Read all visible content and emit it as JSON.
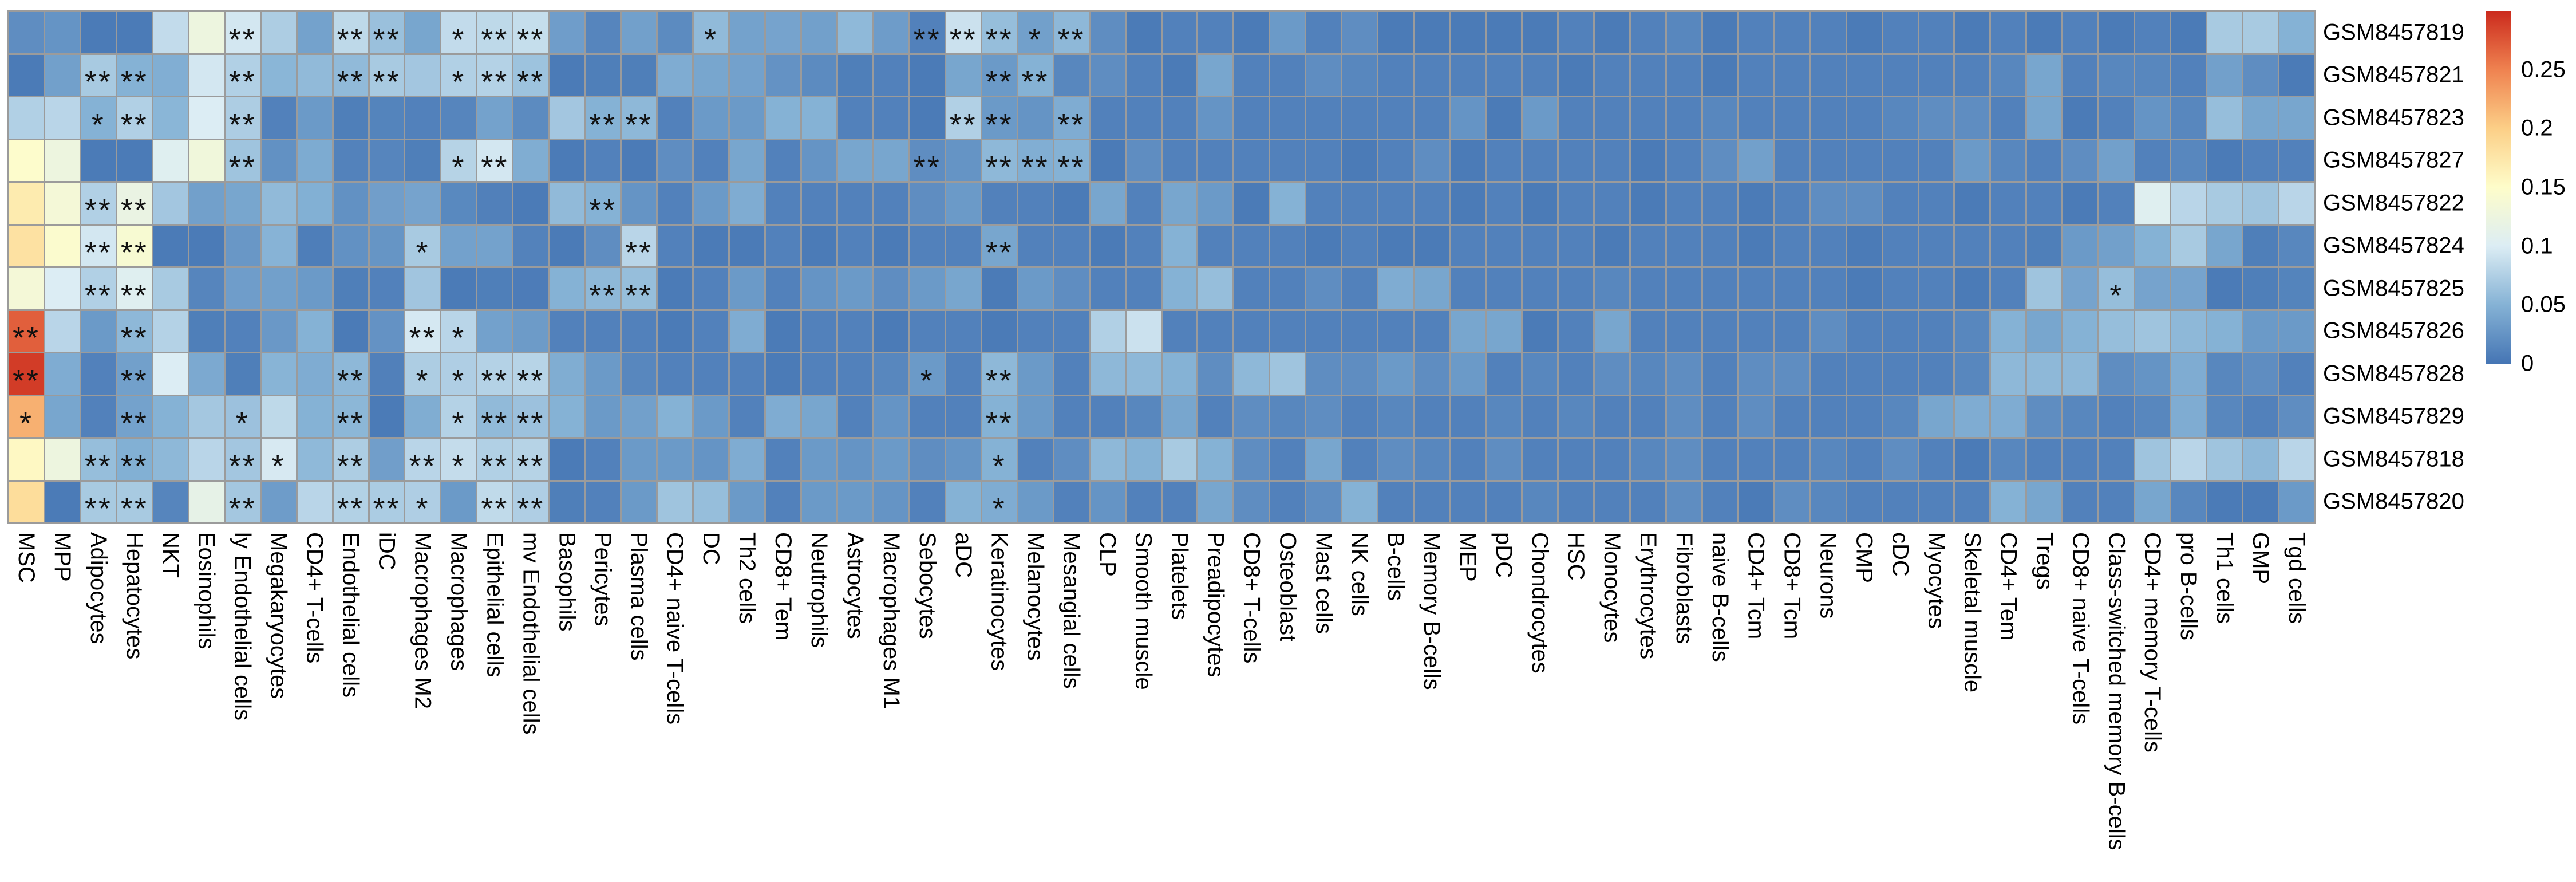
{
  "chart_data": {
    "type": "heatmap",
    "title": "",
    "legend_position": "right",
    "grid_color": "#9b9b9b",
    "background": "#ffffff",
    "rows": [
      "GSM8457819",
      "GSM8457821",
      "GSM8457823",
      "GSM8457827",
      "GSM8457822",
      "GSM8457824",
      "GSM8457825",
      "GSM8457826",
      "GSM8457828",
      "GSM8457829",
      "GSM8457818",
      "GSM8457820"
    ],
    "columns": [
      "MSC",
      "MPP",
      "Adipocytes",
      "Hepatocytes",
      "NKT",
      "Eosinophils",
      "ly Endothelial cells",
      "Megakaryocytes",
      "CD4+ T-cells",
      "Endothelial cells",
      "iDC",
      "Macrophages M2",
      "Macrophages",
      "Epithelial cells",
      "mv Endothelial cells",
      "Basophils",
      "Pericytes",
      "Plasma cells",
      "CD4+ naive T-cells",
      "DC",
      "Th2 cells",
      "CD8+ Tem",
      "Neutrophils",
      "Astrocytes",
      "Macrophages M1",
      "Sebocytes",
      "aDC",
      "Keratinocytes",
      "Melanocytes",
      "Mesangial cells",
      "CLP",
      "Smooth muscle",
      "Platelets",
      "Preadipocytes",
      "CD8+ T-cells",
      "Osteoblast",
      "Mast cells",
      "NK cells",
      "B-cells",
      "Memory B-cells",
      "MEP",
      "pDC",
      "Chondrocytes",
      "HSC",
      "Monocytes",
      "Erythrocytes",
      "Fibroblasts",
      "naive B-cells",
      "CD4+ Tcm",
      "CD8+ Tcm",
      "Neurons",
      "CMP",
      "cDC",
      "Myocytes",
      "Skeletal muscle",
      "CD4+ Tem",
      "Tregs",
      "CD8+ naive T-cells",
      "Class-switched memory B-cells",
      "CD4+ memory T-cells",
      "pro B-cells",
      "Th1 cells",
      "GMP",
      "Tgd cells"
    ],
    "values": [
      [
        0.02,
        0.025,
        0.005,
        0.005,
        0.085,
        0.125,
        0.095,
        0.073,
        0.037,
        0.083,
        0.062,
        0.04,
        0.085,
        0.083,
        0.087,
        0.033,
        0.013,
        0.035,
        0.018,
        0.057,
        0.037,
        0.038,
        0.035,
        0.056,
        0.032,
        0.01,
        0.09,
        0.06,
        0.035,
        0.055,
        0.02,
        0.005,
        0.01,
        0.01,
        0.005,
        0.03,
        0.01,
        0.02,
        0.005,
        0.005,
        0.005,
        0.005,
        0.005,
        0.01,
        0.005,
        0.01,
        0.015,
        0.005,
        0.01,
        0.01,
        0.01,
        0.005,
        0.01,
        0.01,
        0.005,
        0.01,
        0.005,
        0.01,
        0.005,
        0.01,
        0.005,
        0.07,
        0.07,
        0.05
      ],
      [
        0.005,
        0.035,
        0.07,
        0.05,
        0.047,
        0.095,
        0.075,
        0.053,
        0.057,
        0.057,
        0.07,
        0.067,
        0.075,
        0.077,
        0.064,
        0.005,
        0.008,
        0.008,
        0.045,
        0.04,
        0.036,
        0.024,
        0.018,
        0.008,
        0.01,
        0.005,
        0.04,
        0.03,
        0.05,
        0.015,
        0.02,
        0.01,
        0.005,
        0.04,
        0.01,
        0.01,
        0.02,
        0.015,
        0.01,
        0.01,
        0.01,
        0.01,
        0.01,
        0.005,
        0.01,
        0.01,
        0.01,
        0.005,
        0.01,
        0.01,
        0.01,
        0.01,
        0.01,
        0.01,
        0.01,
        0.015,
        0.04,
        0.01,
        0.015,
        0.015,
        0.01,
        0.035,
        0.02,
        0.005
      ],
      [
        0.075,
        0.08,
        0.05,
        0.075,
        0.053,
        0.1,
        0.073,
        0.01,
        0.03,
        0.008,
        0.012,
        0.01,
        0.013,
        0.037,
        0.018,
        0.067,
        0.05,
        0.055,
        0.01,
        0.03,
        0.03,
        0.05,
        0.05,
        0.01,
        0.01,
        0.005,
        0.075,
        0.03,
        0.025,
        0.045,
        0.01,
        0.01,
        0.01,
        0.025,
        0.01,
        0.01,
        0.01,
        0.01,
        0.01,
        0.01,
        0.025,
        0.005,
        0.03,
        0.01,
        0.01,
        0.01,
        0.01,
        0.015,
        0.01,
        0.01,
        0.01,
        0.01,
        0.015,
        0.02,
        0.02,
        0.01,
        0.04,
        0.005,
        0.01,
        0.025,
        0.015,
        0.06,
        0.04,
        0.04
      ],
      [
        0.148,
        0.125,
        0.005,
        0.005,
        0.105,
        0.13,
        0.065,
        0.023,
        0.044,
        0.011,
        0.013,
        0.008,
        0.078,
        0.095,
        0.046,
        0.005,
        0.01,
        0.005,
        0.02,
        0.01,
        0.04,
        0.01,
        0.025,
        0.04,
        0.04,
        0.02,
        0.025,
        0.055,
        0.047,
        0.05,
        0.005,
        0.02,
        0.01,
        0.01,
        0.01,
        0.01,
        0.01,
        0.005,
        0.01,
        0.02,
        0.005,
        0.01,
        0.01,
        0.01,
        0.01,
        0.005,
        0.01,
        0.02,
        0.035,
        0.01,
        0.01,
        0.01,
        0.01,
        0.01,
        0.03,
        0.015,
        0.01,
        0.02,
        0.035,
        0.01,
        0.015,
        0.005,
        0.01,
        0.01
      ],
      [
        0.17,
        0.135,
        0.075,
        0.12,
        0.067,
        0.035,
        0.04,
        0.057,
        0.048,
        0.023,
        0.034,
        0.038,
        0.016,
        0.009,
        0.005,
        0.057,
        0.05,
        0.025,
        0.01,
        0.03,
        0.045,
        0.01,
        0.01,
        0.01,
        0.01,
        0.02,
        0.03,
        0.01,
        0.01,
        0.005,
        0.04,
        0.01,
        0.04,
        0.03,
        0.005,
        0.05,
        0.01,
        0.01,
        0.01,
        0.01,
        0.005,
        0.01,
        0.005,
        0.01,
        0.01,
        0.005,
        0.01,
        0.01,
        0.005,
        0.01,
        0.02,
        0.02,
        0.01,
        0.01,
        0.005,
        0.01,
        0.01,
        0.005,
        0.01,
        0.105,
        0.08,
        0.07,
        0.065,
        0.08
      ],
      [
        0.18,
        0.145,
        0.095,
        0.14,
        0.005,
        0.005,
        0.028,
        0.051,
        0.007,
        0.023,
        0.026,
        0.07,
        0.036,
        0.037,
        0.011,
        0.005,
        0.02,
        0.08,
        0.01,
        0.005,
        0.005,
        0.01,
        0.005,
        0.01,
        0.005,
        0.01,
        0.01,
        0.04,
        0.01,
        0.01,
        0.005,
        0.01,
        0.05,
        0.01,
        0.01,
        0.01,
        0.005,
        0.01,
        0.005,
        0.005,
        0.01,
        0.01,
        0.01,
        0.01,
        0.005,
        0.01,
        0.01,
        0.01,
        0.005,
        0.01,
        0.01,
        0.005,
        0.01,
        0.01,
        0.01,
        0.01,
        0.008,
        0.03,
        0.035,
        0.05,
        0.07,
        0.04,
        0.008,
        0.015
      ],
      [
        0.135,
        0.1,
        0.075,
        0.105,
        0.07,
        0.013,
        0.033,
        0.035,
        0.03,
        0.008,
        0.01,
        0.066,
        0.005,
        0.008,
        0.006,
        0.05,
        0.055,
        0.06,
        0.005,
        0.01,
        0.03,
        0.01,
        0.025,
        0.03,
        0.02,
        0.03,
        0.04,
        0.005,
        0.03,
        0.02,
        0.01,
        0.01,
        0.05,
        0.06,
        0.01,
        0.01,
        0.02,
        0.01,
        0.045,
        0.04,
        0.01,
        0.01,
        0.01,
        0.01,
        0.015,
        0.01,
        0.01,
        0.01,
        0.01,
        0.01,
        0.01,
        0.005,
        0.01,
        0.01,
        0.005,
        0.01,
        0.065,
        0.038,
        0.06,
        0.038,
        0.038,
        0.005,
        0.008,
        0.012
      ],
      [
        0.27,
        0.08,
        0.03,
        0.055,
        0.077,
        0.008,
        0.01,
        0.029,
        0.05,
        0.005,
        0.024,
        0.096,
        0.08,
        0.036,
        0.031,
        0.01,
        0.01,
        0.01,
        0.005,
        0.01,
        0.045,
        0.005,
        0.01,
        0.01,
        0.005,
        0.01,
        0.01,
        0.005,
        0.01,
        0.01,
        0.075,
        0.09,
        0.01,
        0.01,
        0.01,
        0.01,
        0.01,
        0.01,
        0.01,
        0.01,
        0.04,
        0.04,
        0.005,
        0.01,
        0.04,
        0.01,
        0.01,
        0.01,
        0.01,
        0.01,
        0.02,
        0.01,
        0.01,
        0.01,
        0.015,
        0.05,
        0.04,
        0.05,
        0.06,
        0.065,
        0.055,
        0.05,
        0.03,
        0.03
      ],
      [
        0.29,
        0.045,
        0.01,
        0.035,
        0.1,
        0.043,
        0.008,
        0.052,
        0.045,
        0.055,
        0.009,
        0.073,
        0.074,
        0.077,
        0.079,
        0.046,
        0.03,
        0.015,
        0.01,
        0.01,
        0.01,
        0.005,
        0.01,
        0.01,
        0.015,
        0.03,
        0.01,
        0.055,
        0.03,
        0.01,
        0.055,
        0.055,
        0.05,
        0.02,
        0.055,
        0.065,
        0.02,
        0.02,
        0.03,
        0.02,
        0.03,
        0.01,
        0.015,
        0.01,
        0.02,
        0.015,
        0.02,
        0.01,
        0.02,
        0.02,
        0.01,
        0.01,
        0.01,
        0.01,
        0.015,
        0.055,
        0.055,
        0.055,
        0.02,
        0.025,
        0.045,
        0.015,
        0.02,
        0.01
      ],
      [
        0.22,
        0.04,
        0.01,
        0.037,
        0.05,
        0.068,
        0.063,
        0.083,
        0.05,
        0.054,
        0.005,
        0.046,
        0.077,
        0.057,
        0.063,
        0.05,
        0.03,
        0.035,
        0.05,
        0.03,
        0.01,
        0.045,
        0.04,
        0.01,
        0.025,
        0.01,
        0.01,
        0.05,
        0.03,
        0.01,
        0.01,
        0.015,
        0.04,
        0.01,
        0.02,
        0.015,
        0.02,
        0.01,
        0.015,
        0.01,
        0.01,
        0.015,
        0.01,
        0.015,
        0.01,
        0.01,
        0.02,
        0.01,
        0.02,
        0.01,
        0.01,
        0.01,
        0.015,
        0.04,
        0.045,
        0.045,
        0.02,
        0.015,
        0.01,
        0.015,
        0.045,
        0.015,
        0.01,
        0.02
      ],
      [
        0.155,
        0.125,
        0.06,
        0.048,
        0.055,
        0.08,
        0.067,
        0.097,
        0.056,
        0.073,
        0.034,
        0.08,
        0.086,
        0.075,
        0.078,
        0.005,
        0.01,
        0.03,
        0.03,
        0.025,
        0.045,
        0.01,
        0.03,
        0.025,
        0.03,
        0.02,
        0.025,
        0.05,
        0.01,
        0.02,
        0.055,
        0.05,
        0.07,
        0.05,
        0.02,
        0.01,
        0.04,
        0.01,
        0.02,
        0.015,
        0.01,
        0.02,
        0.01,
        0.01,
        0.01,
        0.015,
        0.02,
        0.01,
        0.01,
        0.01,
        0.015,
        0.01,
        0.02,
        0.01,
        0.005,
        0.015,
        0.01,
        0.01,
        0.01,
        0.065,
        0.08,
        0.065,
        0.055,
        0.08
      ],
      [
        0.185,
        0.005,
        0.07,
        0.07,
        0.013,
        0.115,
        0.068,
        0.032,
        0.08,
        0.076,
        0.072,
        0.074,
        0.03,
        0.084,
        0.074,
        0.008,
        0.01,
        0.03,
        0.065,
        0.06,
        0.03,
        0.01,
        0.03,
        0.03,
        0.025,
        0.01,
        0.05,
        0.045,
        0.03,
        0.01,
        0.025,
        0.01,
        0.01,
        0.04,
        0.02,
        0.01,
        0.02,
        0.05,
        0.01,
        0.01,
        0.01,
        0.01,
        0.015,
        0.01,
        0.01,
        0.01,
        0.02,
        0.01,
        0.005,
        0.02,
        0.015,
        0.01,
        0.01,
        0.01,
        0.01,
        0.05,
        0.04,
        0.01,
        0.01,
        0.04,
        0.015,
        0.005,
        0.005,
        0.03
      ]
    ],
    "significance": [
      [
        [
          6,
          "**"
        ],
        [
          9,
          "**"
        ],
        [
          10,
          "**"
        ],
        [
          12,
          "*"
        ],
        [
          13,
          "**"
        ],
        [
          14,
          "**"
        ],
        [
          19,
          "*"
        ],
        [
          25,
          "**"
        ],
        [
          26,
          "**"
        ],
        [
          27,
          "**"
        ],
        [
          28,
          "*"
        ],
        [
          29,
          "**"
        ]
      ],
      [
        [
          2,
          "**"
        ],
        [
          3,
          "**"
        ],
        [
          6,
          "**"
        ],
        [
          9,
          "**"
        ],
        [
          10,
          "**"
        ],
        [
          12,
          "*"
        ],
        [
          13,
          "**"
        ],
        [
          14,
          "**"
        ],
        [
          27,
          "**"
        ],
        [
          28,
          "**"
        ]
      ],
      [
        [
          2,
          "*"
        ],
        [
          3,
          "**"
        ],
        [
          6,
          "**"
        ],
        [
          16,
          "**"
        ],
        [
          17,
          "**"
        ],
        [
          26,
          "**"
        ],
        [
          27,
          "**"
        ],
        [
          29,
          "**"
        ]
      ],
      [
        [
          6,
          "**"
        ],
        [
          12,
          "*"
        ],
        [
          13,
          "**"
        ],
        [
          25,
          "**"
        ],
        [
          27,
          "**"
        ],
        [
          28,
          "**"
        ],
        [
          29,
          "**"
        ]
      ],
      [
        [
          2,
          "**"
        ],
        [
          3,
          "**"
        ],
        [
          16,
          "**"
        ]
      ],
      [
        [
          2,
          "**"
        ],
        [
          3,
          "**"
        ],
        [
          11,
          "*"
        ],
        [
          17,
          "**"
        ],
        [
          27,
          "**"
        ]
      ],
      [
        [
          2,
          "**"
        ],
        [
          3,
          "**"
        ],
        [
          16,
          "**"
        ],
        [
          17,
          "**"
        ],
        [
          58,
          "*"
        ]
      ],
      [
        [
          0,
          "**"
        ],
        [
          3,
          "**"
        ],
        [
          11,
          "**"
        ],
        [
          12,
          "*"
        ]
      ],
      [
        [
          0,
          "**"
        ],
        [
          3,
          "**"
        ],
        [
          9,
          "**"
        ],
        [
          11,
          "*"
        ],
        [
          12,
          "*"
        ],
        [
          13,
          "**"
        ],
        [
          14,
          "**"
        ],
        [
          25,
          "*"
        ],
        [
          27,
          "**"
        ]
      ],
      [
        [
          0,
          "*"
        ],
        [
          3,
          "**"
        ],
        [
          6,
          "*"
        ],
        [
          9,
          "**"
        ],
        [
          12,
          "*"
        ],
        [
          13,
          "**"
        ],
        [
          14,
          "**"
        ],
        [
          27,
          "**"
        ]
      ],
      [
        [
          2,
          "**"
        ],
        [
          3,
          "**"
        ],
        [
          6,
          "**"
        ],
        [
          7,
          "*"
        ],
        [
          9,
          "**"
        ],
        [
          11,
          "**"
        ],
        [
          12,
          "*"
        ],
        [
          13,
          "**"
        ],
        [
          14,
          "**"
        ],
        [
          27,
          "*"
        ]
      ],
      [
        [
          2,
          "**"
        ],
        [
          3,
          "**"
        ],
        [
          6,
          "**"
        ],
        [
          9,
          "**"
        ],
        [
          10,
          "**"
        ],
        [
          11,
          "*"
        ],
        [
          13,
          "**"
        ],
        [
          14,
          "**"
        ],
        [
          27,
          "*"
        ]
      ]
    ],
    "colorbar": {
      "min": 0,
      "max": 0.3,
      "tick_labels": [
        "0.25",
        "0.2",
        "0.15",
        "0.1",
        "0.05",
        "0"
      ],
      "tick_values": [
        0.25,
        0.2,
        0.15,
        0.1,
        0.05,
        0
      ],
      "colormap": [
        [
          0.0,
          "#4575b4"
        ],
        [
          0.05,
          "#85b2d5"
        ],
        [
          0.1,
          "#dcedf4"
        ],
        [
          0.15,
          "#fefdca"
        ],
        [
          0.2,
          "#fccf87"
        ],
        [
          0.25,
          "#ef8250"
        ],
        [
          0.3,
          "#cb2a1d"
        ]
      ]
    }
  }
}
